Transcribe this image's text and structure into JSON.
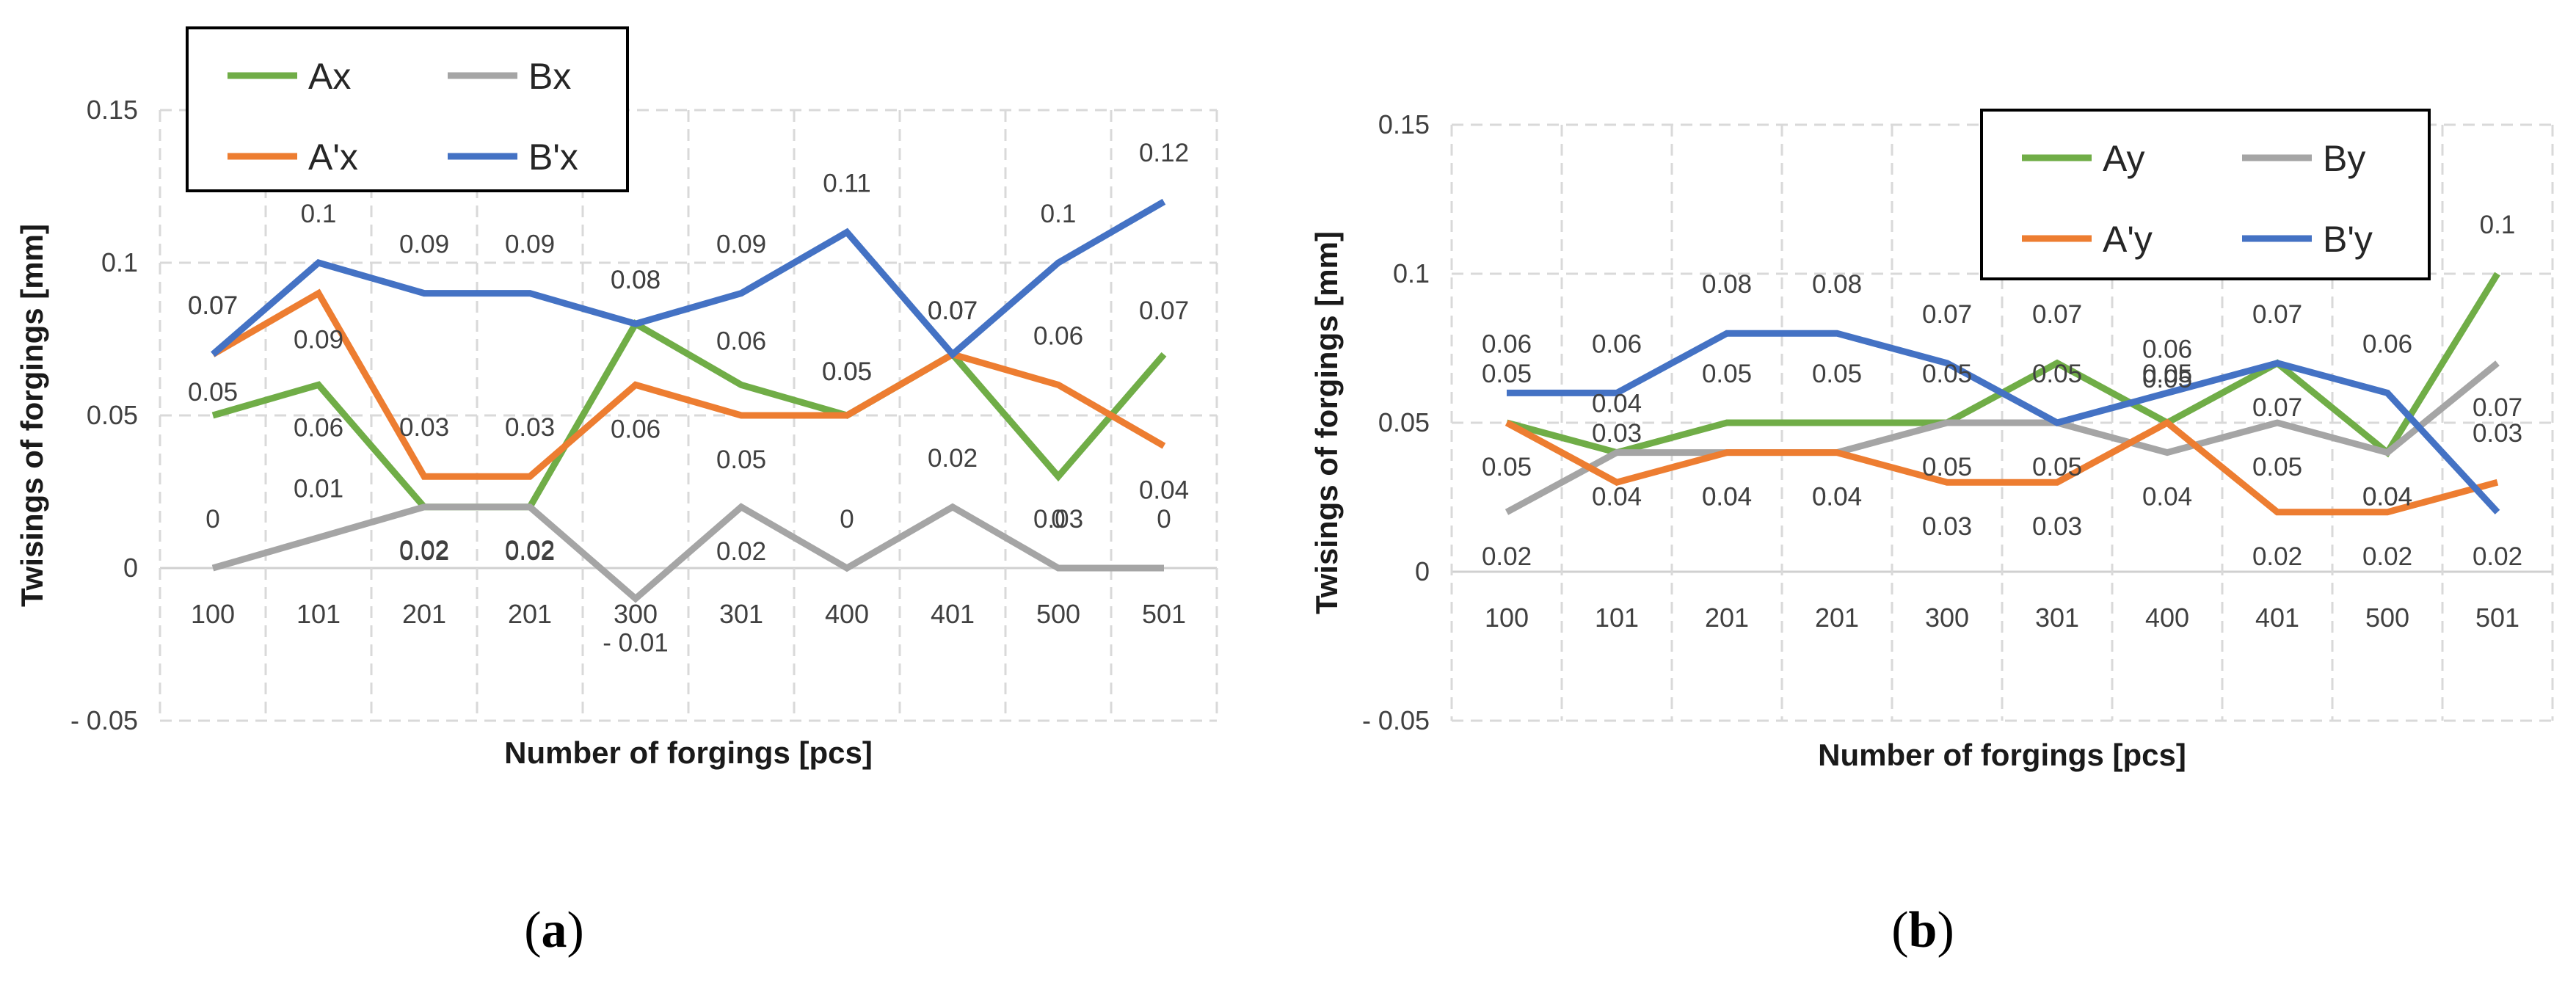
{
  "chart_data": [
    {
      "type": "line",
      "panel": "a",
      "caption": "(a)",
      "caption_letter": "a",
      "xlabel": "Number of forgings [pcs]",
      "ylabel": "Twisings of forgings [mm]",
      "ylim": [
        -0.05,
        0.15
      ],
      "yticks": [
        -0.05,
        0,
        0.05,
        0.1,
        0.15
      ],
      "ytick_labels": [
        "- 0.05",
        "0",
        "0.05",
        "0.1",
        "0.15"
      ],
      "categories": [
        "100",
        "101",
        "201",
        "201",
        "300",
        "301",
        "400",
        "401",
        "500",
        "501"
      ],
      "grid": true,
      "legend_position": "top-left",
      "series": [
        {
          "name": "Ax",
          "color": "#70ad47",
          "values": [
            0.05,
            0.06,
            0.02,
            0.02,
            0.08,
            0.06,
            0.05,
            0.07,
            0.03,
            0.07
          ],
          "labels": [
            "0.05",
            "0.06",
            "0.02",
            "0.02",
            "0.08",
            "0.06",
            "0.05",
            "0.07",
            "0.03",
            "0.07"
          ]
        },
        {
          "name": "Bx",
          "color": "#a5a5a5",
          "values": [
            0,
            0.01,
            0.02,
            0.02,
            -0.01,
            0.02,
            0,
            0.02,
            0,
            0
          ],
          "labels": [
            "0",
            "0.01",
            "0.02",
            "0.02",
            "- 0.01",
            "0.02",
            "0",
            "0.02",
            "0",
            "0"
          ]
        },
        {
          "name": "A'x",
          "color": "#ed7d31",
          "values": [
            0.07,
            0.09,
            0.03,
            0.03,
            0.06,
            0.05,
            0.05,
            0.07,
            0.06,
            0.04
          ],
          "labels": [
            "0.07",
            "0.09",
            "0.03",
            "0.03",
            "0.06",
            "0.05",
            "0.05",
            "0.07",
            "0.06",
            "0.04"
          ]
        },
        {
          "name": "B'x",
          "color": "#4472c4",
          "values": [
            0.07,
            0.1,
            0.09,
            0.09,
            0.08,
            0.09,
            0.11,
            0.07,
            0.1,
            0.12
          ],
          "labels": [
            "0.07",
            "0.1",
            "0.09",
            "0.09",
            "0.08",
            "0.09",
            "0.11",
            "0.07",
            "0.1",
            "0.12"
          ]
        }
      ]
    },
    {
      "type": "line",
      "panel": "b",
      "caption": "(b)",
      "caption_letter": "b",
      "xlabel": "Number of forgings [pcs]",
      "ylabel": "Twisings of forgings [mm]",
      "ylim": [
        -0.05,
        0.15
      ],
      "yticks": [
        -0.05,
        0,
        0.05,
        0.1,
        0.15
      ],
      "ytick_labels": [
        "- 0.05",
        "0",
        "0.05",
        "0.1",
        "0.15"
      ],
      "categories": [
        "100",
        "101",
        "201",
        "201",
        "300",
        "301",
        "400",
        "401",
        "500",
        "501"
      ],
      "grid": true,
      "legend_position": "top-right",
      "series": [
        {
          "name": "Ay",
          "color": "#70ad47",
          "values": [
            0.05,
            0.04,
            0.05,
            0.05,
            0.05,
            0.07,
            0.05,
            0.07,
            0.04,
            0.1
          ],
          "labels": [
            "0.05",
            "0.04",
            "0.05",
            "0.05",
            "0.05",
            "0.07",
            "0.05",
            "0.07",
            "0.04",
            "0.1"
          ]
        },
        {
          "name": "By",
          "color": "#a5a5a5",
          "values": [
            0.02,
            0.04,
            0.04,
            0.04,
            0.05,
            0.05,
            0.04,
            0.05,
            0.04,
            0.07
          ],
          "labels": [
            "0.02",
            "0.04",
            "0.04",
            "0.04",
            "0.05",
            "0.05",
            "0.04",
            "0.05",
            "0.04",
            "0.07"
          ]
        },
        {
          "name": "A'y",
          "color": "#ed7d31",
          "values": [
            0.05,
            0.03,
            0.04,
            0.04,
            0.03,
            0.03,
            0.05,
            0.02,
            0.02,
            0.03
          ],
          "labels": [
            "0.05",
            "0.03",
            "0.04",
            "0.04",
            "0.03",
            "0.03",
            "0.05",
            "0.02",
            "0.02",
            "0.03"
          ]
        },
        {
          "name": "B'y",
          "color": "#4472c4",
          "values": [
            0.06,
            0.06,
            0.08,
            0.08,
            0.07,
            0.05,
            0.06,
            0.07,
            0.06,
            0.02
          ],
          "labels": [
            "0.06",
            "0.06",
            "0.08",
            "0.08",
            "0.07",
            "0.05",
            "0.06",
            "0.07",
            "0.06",
            "0.02"
          ]
        }
      ]
    }
  ]
}
